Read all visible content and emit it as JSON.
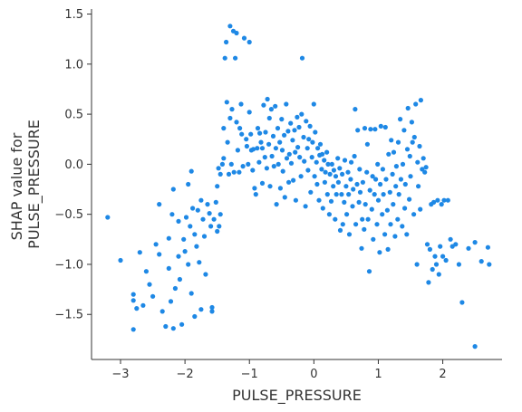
{
  "chart_data": {
    "type": "scatter",
    "xlabel": "PULSE_PRESSURE",
    "ylabel": [
      "SHAP value for",
      "PULSE_PRESSURE"
    ],
    "xlim": [
      -3.45,
      2.92
    ],
    "ylim": [
      -1.95,
      1.55
    ],
    "xticks": [
      -3,
      -2,
      -1,
      0,
      1,
      2
    ],
    "yticks": [
      -1.5,
      -1.0,
      -0.5,
      0.0,
      0.5,
      1.0,
      1.5
    ],
    "xtick_labels": [
      "−3",
      "−2",
      "−1",
      "0",
      "1",
      "2"
    ],
    "ytick_labels": [
      "−1.5",
      "−1.0",
      "−0.5",
      "0.0",
      "0.5",
      "1.0",
      "1.5"
    ],
    "grid": false,
    "point_color": "#1E88E5",
    "points": [
      [
        -3.2,
        -0.53
      ],
      [
        -3.0,
        -0.96
      ],
      [
        -2.8,
        -1.3
      ],
      [
        -2.8,
        -1.36
      ],
      [
        -2.8,
        -1.65
      ],
      [
        -2.75,
        -1.44
      ],
      [
        -2.7,
        -0.88
      ],
      [
        -2.65,
        -1.41
      ],
      [
        -2.6,
        -1.07
      ],
      [
        -2.55,
        -1.2
      ],
      [
        -2.5,
        -1.32
      ],
      [
        -2.45,
        -0.8
      ],
      [
        -2.4,
        -0.4
      ],
      [
        -2.4,
        -0.9
      ],
      [
        -2.35,
        -1.47
      ],
      [
        -2.3,
        -1.62
      ],
      [
        -2.25,
        -0.74
      ],
      [
        -2.25,
        -1.04
      ],
      [
        -2.22,
        -1.37
      ],
      [
        -2.2,
        -0.5
      ],
      [
        -2.18,
        -0.25
      ],
      [
        -2.18,
        -1.64
      ],
      [
        -2.15,
        -1.24
      ],
      [
        -2.1,
        -0.57
      ],
      [
        -2.1,
        -0.92
      ],
      [
        -2.08,
        -1.15
      ],
      [
        -2.05,
        -1.6
      ],
      [
        -2.02,
        -0.75
      ],
      [
        -2.0,
        -0.87
      ],
      [
        -1.98,
        -0.53
      ],
      [
        -1.95,
        -0.2
      ],
      [
        -1.95,
        -1.0
      ],
      [
        -1.92,
        -0.62
      ],
      [
        -1.9,
        -0.07
      ],
      [
        -1.9,
        -1.29
      ],
      [
        -1.88,
        -0.44
      ],
      [
        -1.85,
        -0.7
      ],
      [
        -1.85,
        -1.52
      ],
      [
        -1.82,
        -0.82
      ],
      [
        -1.8,
        -0.46
      ],
      [
        -1.78,
        -0.98
      ],
      [
        -1.75,
        -0.36
      ],
      [
        -1.75,
        -1.45
      ],
      [
        -1.72,
        -0.55
      ],
      [
        -1.7,
        -0.72
      ],
      [
        -1.68,
        -1.1
      ],
      [
        -1.65,
        -0.4
      ],
      [
        -1.62,
        -0.49
      ],
      [
        -1.6,
        -0.62
      ],
      [
        -1.58,
        -1.47
      ],
      [
        -1.58,
        -1.43
      ],
      [
        -1.55,
        -0.55
      ],
      [
        -1.52,
        -0.38
      ],
      [
        -1.5,
        -0.67
      ],
      [
        -1.5,
        -0.22
      ],
      [
        -1.48,
        -0.04
      ],
      [
        -1.47,
        -0.62
      ],
      [
        -1.45,
        -0.5
      ],
      [
        -1.45,
        -0.1
      ],
      [
        -1.42,
        0.0
      ],
      [
        -1.4,
        0.06
      ],
      [
        -1.4,
        0.36
      ],
      [
        -1.38,
        1.06
      ],
      [
        -1.36,
        1.22
      ],
      [
        -1.35,
        0.62
      ],
      [
        -1.34,
        0.22
      ],
      [
        -1.32,
        -0.1
      ],
      [
        -1.3,
        1.38
      ],
      [
        -1.3,
        0.46
      ],
      [
        -1.28,
        0.0
      ],
      [
        -1.27,
        0.55
      ],
      [
        -1.25,
        1.33
      ],
      [
        -1.24,
        -0.08
      ],
      [
        -1.22,
        1.06
      ],
      [
        -1.2,
        1.31
      ],
      [
        -1.2,
        0.42
      ],
      [
        -1.18,
        0.14
      ],
      [
        -1.16,
        -0.08
      ],
      [
        -1.15,
        0.36
      ],
      [
        -1.13,
        0.6
      ],
      [
        -1.12,
        0.3
      ],
      [
        -1.1,
        -0.02
      ],
      [
        -1.08,
        1.26
      ],
      [
        -1.05,
        0.25
      ],
      [
        -1.04,
        0.18
      ],
      [
        -1.02,
        0.0
      ],
      [
        -1.0,
        0.52
      ],
      [
        -1.0,
        1.22
      ],
      [
        -0.98,
        0.3
      ],
      [
        -0.97,
        0.14
      ],
      [
        -0.95,
        -0.06
      ],
      [
        -0.94,
        0.15
      ],
      [
        -0.92,
        -0.24
      ],
      [
        -0.9,
        -0.3
      ],
      [
        -0.88,
        0.16
      ],
      [
        -0.87,
        0.36
      ],
      [
        -0.85,
        0.02
      ],
      [
        -0.84,
        0.31
      ],
      [
        -0.82,
        0.22
      ],
      [
        -0.8,
        0.16
      ],
      [
        -0.8,
        -0.19
      ],
      [
        -0.78,
        0.59
      ],
      [
        -0.76,
        0.07
      ],
      [
        -0.75,
        0.32
      ],
      [
        -0.73,
        -0.04
      ],
      [
        -0.72,
        0.65
      ],
      [
        -0.7,
        0.2
      ],
      [
        -0.69,
        0.46
      ],
      [
        -0.68,
        -0.22
      ],
      [
        -0.66,
        0.55
      ],
      [
        -0.65,
        0.08
      ],
      [
        -0.63,
        0.28
      ],
      [
        -0.62,
        -0.02
      ],
      [
        -0.6,
        0.58
      ],
      [
        -0.59,
        0.16
      ],
      [
        -0.58,
        -0.4
      ],
      [
        -0.56,
        0.36
      ],
      [
        -0.55,
        0.0
      ],
      [
        -0.53,
        0.22
      ],
      [
        -0.52,
        -0.24
      ],
      [
        -0.5,
        0.45
      ],
      [
        -0.49,
        0.14
      ],
      [
        -0.48,
        -0.07
      ],
      [
        -0.46,
        0.29
      ],
      [
        -0.45,
        -0.33
      ],
      [
        -0.43,
        0.6
      ],
      [
        -0.42,
        0.06
      ],
      [
        -0.4,
        0.33
      ],
      [
        -0.39,
        -0.18
      ],
      [
        -0.38,
        0.1
      ],
      [
        -0.36,
        0.41
      ],
      [
        -0.35,
        0.01
      ],
      [
        -0.33,
        0.24
      ],
      [
        -0.32,
        -0.16
      ],
      [
        -0.3,
        0.34
      ],
      [
        -0.29,
        0.12
      ],
      [
        -0.28,
        -0.36
      ],
      [
        -0.26,
        0.47
      ],
      [
        -0.25,
        0.17
      ],
      [
        -0.23,
        0.37
      ],
      [
        -0.22,
        0.07
      ],
      [
        -0.2,
        -0.12
      ],
      [
        -0.19,
        0.5
      ],
      [
        -0.18,
        1.06
      ],
      [
        -0.16,
        0.27
      ],
      [
        -0.15,
        0.03
      ],
      [
        -0.13,
        -0.42
      ],
      [
        -0.12,
        0.43
      ],
      [
        -0.1,
        0.16
      ],
      [
        -0.09,
        -0.06
      ],
      [
        -0.08,
        0.25
      ],
      [
        -0.06,
        0.38
      ],
      [
        -0.05,
        -0.28
      ],
      [
        -0.03,
        0.07
      ],
      [
        -0.02,
        0.22
      ],
      [
        0.0,
        0.6
      ],
      [
        0.01,
        -0.12
      ],
      [
        0.02,
        0.32
      ],
      [
        0.04,
        0.02
      ],
      [
        0.05,
        -0.2
      ],
      [
        0.06,
        0.16
      ],
      [
        0.08,
        -0.36
      ],
      [
        0.09,
        0.09
      ],
      [
        0.1,
        0.2
      ],
      [
        0.12,
        -0.05
      ],
      [
        0.13,
        0.1
      ],
      [
        0.14,
        -0.44
      ],
      [
        0.16,
        0.04
      ],
      [
        0.17,
        -0.18
      ],
      [
        0.18,
        -0.08
      ],
      [
        0.2,
        0.12
      ],
      [
        0.21,
        -0.3
      ],
      [
        0.22,
        0.0
      ],
      [
        0.24,
        -0.5
      ],
      [
        0.25,
        -0.1
      ],
      [
        0.27,
        -0.37
      ],
      [
        0.28,
        0.0
      ],
      [
        0.3,
        -0.22
      ],
      [
        0.31,
        -0.06
      ],
      [
        0.33,
        -0.55
      ],
      [
        0.34,
        -0.12
      ],
      [
        0.35,
        -0.3
      ],
      [
        0.37,
        0.06
      ],
      [
        0.38,
        -0.18
      ],
      [
        0.4,
        -0.04
      ],
      [
        0.41,
        -0.66
      ],
      [
        0.43,
        -0.3
      ],
      [
        0.44,
        -0.1
      ],
      [
        0.45,
        -0.6
      ],
      [
        0.47,
        -0.38
      ],
      [
        0.48,
        0.04
      ],
      [
        0.5,
        -0.22
      ],
      [
        0.51,
        -0.5
      ],
      [
        0.53,
        -0.08
      ],
      [
        0.54,
        -0.3
      ],
      [
        0.55,
        -0.7
      ],
      [
        0.57,
        -0.15
      ],
      [
        0.58,
        0.02
      ],
      [
        0.6,
        -0.42
      ],
      [
        0.61,
        -0.25
      ],
      [
        0.63,
        0.08
      ],
      [
        0.64,
        0.55
      ],
      [
        0.65,
        -0.6
      ],
      [
        0.67,
        -0.2
      ],
      [
        0.68,
        0.34
      ],
      [
        0.7,
        -0.38
      ],
      [
        0.71,
        -0.05
      ],
      [
        0.72,
        -0.28
      ],
      [
        0.74,
        -0.84
      ],
      [
        0.75,
        -0.55
      ],
      [
        0.76,
        -0.18
      ],
      [
        0.78,
        -0.65
      ],
      [
        0.79,
        0.36
      ],
      [
        0.8,
        -0.4
      ],
      [
        0.82,
        -0.08
      ],
      [
        0.83,
        0.2
      ],
      [
        0.84,
        -0.55
      ],
      [
        0.86,
        -1.07
      ],
      [
        0.87,
        -0.26
      ],
      [
        0.88,
        0.35
      ],
      [
        0.9,
        -0.45
      ],
      [
        0.91,
        -0.12
      ],
      [
        0.92,
        -0.75
      ],
      [
        0.94,
        -0.3
      ],
      [
        0.95,
        0.35
      ],
      [
        0.96,
        -0.15
      ],
      [
        0.98,
        -0.6
      ],
      [
        0.99,
        0.0
      ],
      [
        1.0,
        -0.36
      ],
      [
        1.02,
        -0.88
      ],
      [
        1.03,
        -0.2
      ],
      [
        1.04,
        0.38
      ],
      [
        1.06,
        -0.5
      ],
      [
        1.07,
        -0.05
      ],
      [
        1.08,
        -0.3
      ],
      [
        1.1,
        -0.7
      ],
      [
        1.11,
        0.37
      ],
      [
        1.12,
        -0.15
      ],
      [
        1.14,
        -0.46
      ],
      [
        1.15,
        -0.85
      ],
      [
        1.16,
        0.1
      ],
      [
        1.18,
        -0.28
      ],
      [
        1.19,
        -0.6
      ],
      [
        1.2,
        0.24
      ],
      [
        1.22,
        -0.1
      ],
      [
        1.23,
        -0.4
      ],
      [
        1.24,
        0.12
      ],
      [
        1.26,
        -0.72
      ],
      [
        1.27,
        -0.22
      ],
      [
        1.28,
        -0.02
      ],
      [
        1.3,
        -0.55
      ],
      [
        1.31,
        0.22
      ],
      [
        1.32,
        -0.3
      ],
      [
        1.34,
        0.45
      ],
      [
        1.35,
        -0.15
      ],
      [
        1.37,
        -0.62
      ],
      [
        1.38,
        0.0
      ],
      [
        1.4,
        0.34
      ],
      [
        1.41,
        -0.44
      ],
      [
        1.42,
        -0.2
      ],
      [
        1.44,
        -0.7
      ],
      [
        1.45,
        0.15
      ],
      [
        1.46,
        0.56
      ],
      [
        1.48,
        -0.35
      ],
      [
        1.49,
        0.08
      ],
      [
        1.5,
        -0.12
      ],
      [
        1.52,
        0.42
      ],
      [
        1.53,
        0.22
      ],
      [
        1.55,
        -0.5
      ],
      [
        1.56,
        0.27
      ],
      [
        1.58,
        0.6
      ],
      [
        1.6,
        -1.0
      ],
      [
        1.61,
        0.02
      ],
      [
        1.62,
        -0.22
      ],
      [
        1.64,
        0.18
      ],
      [
        1.65,
        -0.45
      ],
      [
        1.66,
        0.64
      ],
      [
        1.68,
        -0.05
      ],
      [
        1.7,
        0.06
      ],
      [
        1.72,
        -0.08
      ],
      [
        1.74,
        -0.03
      ],
      [
        1.76,
        -0.8
      ],
      [
        1.78,
        -1.18
      ],
      [
        1.8,
        -0.85
      ],
      [
        1.82,
        -0.4
      ],
      [
        1.84,
        -1.05
      ],
      [
        1.86,
        -0.38
      ],
      [
        1.88,
        -0.92
      ],
      [
        1.9,
        -1.0
      ],
      [
        1.92,
        -0.36
      ],
      [
        1.94,
        -1.1
      ],
      [
        1.96,
        -0.82
      ],
      [
        1.98,
        -0.4
      ],
      [
        2.0,
        -0.92
      ],
      [
        2.02,
        -0.36
      ],
      [
        2.05,
        -0.96
      ],
      [
        2.08,
        -0.36
      ],
      [
        2.12,
        -0.75
      ],
      [
        2.15,
        -0.82
      ],
      [
        2.2,
        -0.8
      ],
      [
        2.25,
        -1.0
      ],
      [
        2.3,
        -1.38
      ],
      [
        2.4,
        -0.84
      ],
      [
        2.5,
        -0.78
      ],
      [
        2.5,
        -1.82
      ],
      [
        2.6,
        -0.97
      ],
      [
        2.7,
        -0.83
      ],
      [
        2.72,
        -1.0
      ]
    ]
  }
}
